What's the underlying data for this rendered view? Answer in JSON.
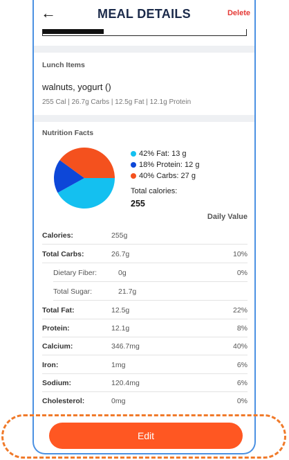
{
  "header": {
    "title": "MEAL DETAILS",
    "back_icon": "←",
    "delete_label": "Delete"
  },
  "progress": {
    "fraction": 0.3
  },
  "lunch": {
    "section_label": "Lunch Items",
    "name": "walnuts, yogurt ()",
    "macros": "255 Cal | 26.7g Carbs | 12.5g Fat | 12.1g Protein"
  },
  "nutrition": {
    "section_label": "Nutrition Facts",
    "legend": [
      {
        "label": "42% Fat: 13 g",
        "color": "#14c0f0"
      },
      {
        "label": "18% Protein: 12 g",
        "color": "#0d47d8"
      },
      {
        "label": "40% Carbs: 27 g",
        "color": "#f4511e"
      }
    ],
    "pie_percents": [
      42,
      18,
      40
    ],
    "total_label": "Total calories:",
    "total_value": "255",
    "daily_value_header": "Daily Value",
    "rows": [
      {
        "label": "Calories:",
        "amount": "255g",
        "pct": ""
      },
      {
        "label": "Total Carbs:",
        "amount": "26.7g",
        "pct": "10%"
      },
      {
        "label": "Dietary Fiber:",
        "amount": "0g",
        "pct": "0%"
      },
      {
        "label": "Total Sugar:",
        "amount": "21.7g",
        "pct": ""
      },
      {
        "label": "Total Fat:",
        "amount": "12.5g",
        "pct": "22%"
      },
      {
        "label": "Protein:",
        "amount": "12.1g",
        "pct": "8%"
      },
      {
        "label": "Calcium:",
        "amount": "346.7mg",
        "pct": "40%"
      },
      {
        "label": "Iron:",
        "amount": "1mg",
        "pct": "6%"
      },
      {
        "label": "Sodium:",
        "amount": "120.4mg",
        "pct": "6%"
      },
      {
        "label": "Cholesterol:",
        "amount": "0mg",
        "pct": "0%"
      }
    ]
  },
  "edit_label": "Edit"
}
